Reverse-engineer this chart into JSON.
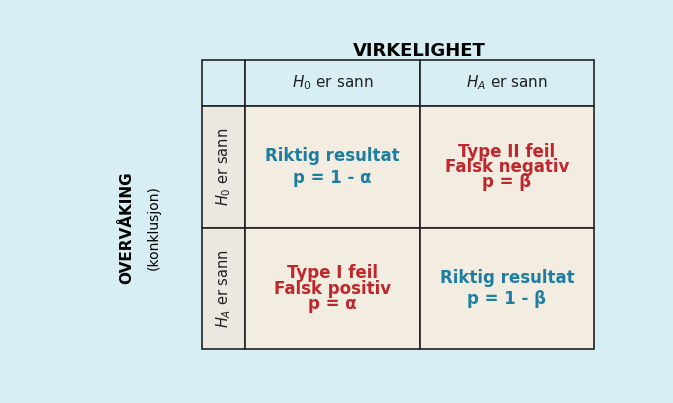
{
  "background_color": "#d6eef4",
  "cell_bg_color": "#f2ede0",
  "side_bg_color": "#eae8df",
  "title_top": "VIRKELIGHET",
  "title_left_line1": "OVERVÅKING",
  "title_left_line2": "(konklusjon)",
  "cell_texts": [
    [
      "Riktig resultat\n\np = 1 - α",
      "Type II feil\nFalsk negativ\np = β"
    ],
    [
      "Type I feil\nFalsk positiv\np = α",
      "Riktig resultat\n\np = 1 - β"
    ]
  ],
  "cell_colors": [
    [
      "#1e7ea1",
      "#c0272d"
    ],
    [
      "#c0272d",
      "#1e7ea1"
    ]
  ],
  "border_color": "#222222",
  "title_color": "#000000",
  "header_text_color": "#222222",
  "fig_w": 6.73,
  "fig_h": 4.03,
  "dpi": 100
}
